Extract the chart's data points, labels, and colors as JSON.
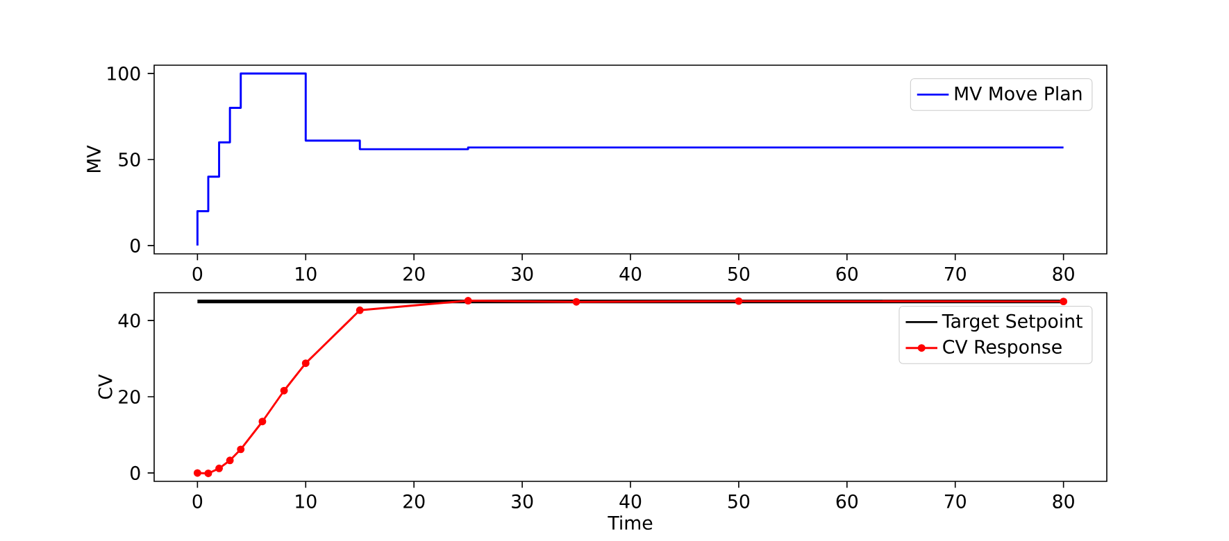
{
  "chart_data": [
    {
      "type": "step",
      "ylabel": "MV",
      "xlim": [
        -4,
        84
      ],
      "ylim": [
        -4.8,
        104.8
      ],
      "xticks": [
        0,
        10,
        20,
        30,
        40,
        50,
        60,
        70,
        80
      ],
      "yticks": [
        0,
        50,
        100
      ],
      "legend": "top right",
      "series": [
        {
          "name": "MV Move Plan",
          "color": "#0000ff",
          "x": [
            0,
            1,
            2,
            3,
            4,
            10,
            15,
            25,
            80
          ],
          "values": [
            0,
            20,
            40,
            60,
            80,
            100,
            61,
            56,
            57
          ]
        }
      ]
    },
    {
      "type": "line",
      "xlabel": "Time",
      "ylabel": "CV",
      "xlim": [
        -4,
        84
      ],
      "ylim": [
        -2.2,
        47.3
      ],
      "xticks": [
        0,
        10,
        20,
        30,
        40,
        50,
        60,
        70,
        80
      ],
      "yticks": [
        0,
        20,
        40
      ],
      "legend": "top right",
      "series": [
        {
          "name": "Target Setpoint",
          "color": "#000000",
          "marker": "none",
          "x": [
            0,
            80
          ],
          "values": [
            45,
            45
          ]
        },
        {
          "name": "CV Response",
          "color": "#ff0000",
          "marker": "circle",
          "x": [
            0,
            1,
            2,
            3,
            4,
            6,
            8,
            10,
            15,
            25,
            35,
            50,
            80
          ],
          "values": [
            0,
            -0.1,
            1.2,
            3.3,
            6.2,
            13.5,
            21.6,
            28.8,
            42.7,
            45.2,
            44.9,
            45.1,
            45.0
          ]
        }
      ]
    }
  ]
}
